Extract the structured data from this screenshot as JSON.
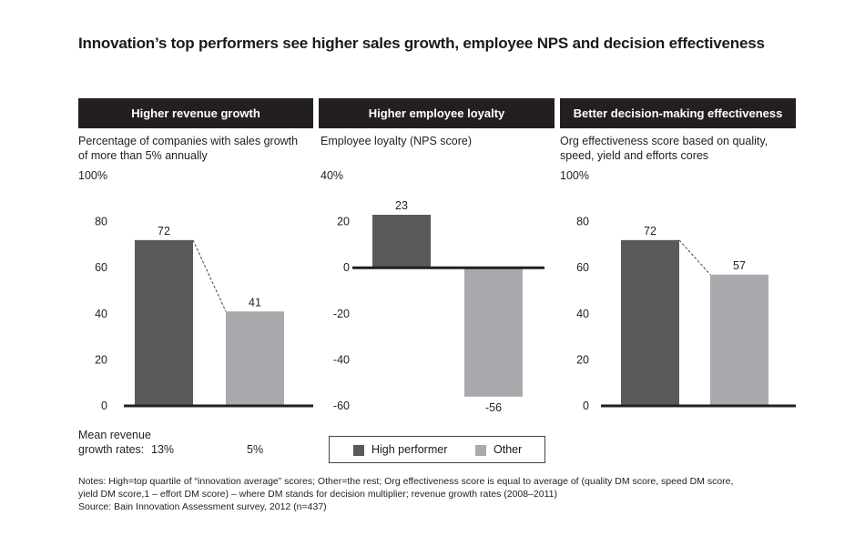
{
  "title": "Innovation’s top performers see higher sales growth, employee NPS and decision effectiveness",
  "colors": {
    "high": "#58595b",
    "other": "#a7a9ac",
    "header_bg": "#231f20",
    "header_text": "#ffffff"
  },
  "chart_data": [
    {
      "type": "bar",
      "header": "Higher revenue growth",
      "title": "Percentage of companies with sales growth of more than 5% annually",
      "ylim": [
        0,
        100
      ],
      "yticks": [
        "100%",
        "80",
        "60",
        "40",
        "20",
        "0"
      ],
      "categories": [
        "High performer",
        "Other"
      ],
      "values": [
        72,
        41
      ],
      "value_labels": [
        "72",
        "41"
      ],
      "connector": "dashed"
    },
    {
      "type": "bar",
      "header": "Higher employee loyalty",
      "title": "Employee loyalty (NPS score)",
      "ylim": [
        -60,
        40
      ],
      "yticks": [
        "40%",
        "20",
        "0",
        "-20",
        "-40",
        "-60"
      ],
      "categories": [
        "High performer",
        "Other"
      ],
      "values": [
        23,
        -56
      ],
      "value_labels": [
        "23",
        "-56"
      ]
    },
    {
      "type": "bar",
      "header": "Better decision-making effectiveness",
      "title": "Org effectiveness score based on quality, speed, yield and efforts cores",
      "ylim": [
        0,
        100
      ],
      "yticks": [
        "100%",
        "80",
        "60",
        "40",
        "20",
        "0"
      ],
      "categories": [
        "High performer",
        "Other"
      ],
      "values": [
        72,
        57
      ],
      "value_labels": [
        "72",
        "57"
      ],
      "connector": "dashed"
    }
  ],
  "mean_revenue": {
    "label_line1": "Mean revenue",
    "label_line2": "growth rates:",
    "high_value": "13%",
    "other_value": "5%"
  },
  "legend": {
    "high": "High performer",
    "other": "Other"
  },
  "notes": {
    "line1": "Notes: High=top quartile of “innovation average” scores; Other=the rest; Org effectiveness score is equal to average of (quality DM score, speed DM score,",
    "line2": "yield DM score,1 – effort DM score) – where DM stands for decision multiplier; revenue growth rates (2008–2011)",
    "line3": "Source: Bain Innovation Assessment survey, 2012 (n=437)"
  }
}
